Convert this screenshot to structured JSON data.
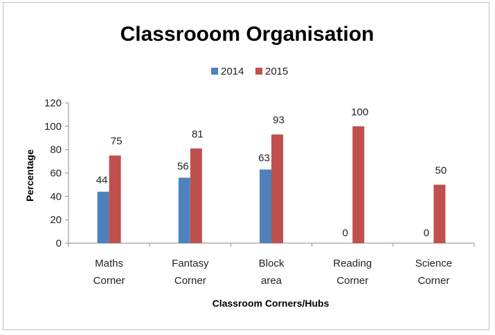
{
  "chart_data": {
    "type": "bar",
    "title": "Classrooom Organisation",
    "xlabel": "Classroom  Corners/Hubs",
    "ylabel": "Percentage",
    "ylim": [
      0,
      120
    ],
    "yticks": [
      0,
      20,
      40,
      60,
      80,
      100,
      120
    ],
    "grid": false,
    "legend_position": "top-center",
    "categories": [
      [
        "Maths",
        "Corner"
      ],
      [
        "Fantasy",
        "Corner"
      ],
      [
        "Block",
        "area"
      ],
      [
        "Reading",
        "Corner"
      ],
      [
        "Science",
        "Corner"
      ]
    ],
    "series": [
      {
        "name": "2014",
        "color": "#4f81bd",
        "values": [
          44,
          56,
          63,
          0,
          0
        ]
      },
      {
        "name": "2015",
        "color": "#c0504d",
        "values": [
          75,
          81,
          93,
          100,
          50
        ]
      }
    ]
  }
}
